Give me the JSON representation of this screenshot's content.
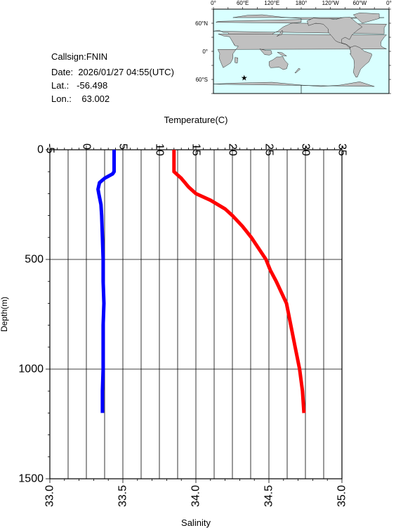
{
  "station": {
    "callsign_label": "Callsign:",
    "callsign": "FNIN",
    "date_label": "Date:",
    "date": "2026/01/27 04:55(UTC)",
    "lat_label": "Lat.:",
    "lat": "-56.498",
    "lon_label": "Lon.:",
    "lon": "63.002"
  },
  "map": {
    "lon_labels": [
      "0°",
      "60°E",
      "120°E",
      "180°",
      "120°W",
      "60°W",
      "0°"
    ],
    "lat_labels": [
      "60°N",
      "0°",
      "60°S"
    ],
    "ocean_color": "#d9ffff",
    "land_color": "#c0c0c0",
    "marker_color": "#ff0000",
    "marker_lat": -56.498,
    "marker_lon": 63.002
  },
  "chart_data": {
    "type": "line",
    "top_axis_label": "Temperature(C)",
    "bottom_axis_label": "Salinity",
    "ylabel": "Depth(m)",
    "temperature_ticks": [
      "-5",
      "0",
      "5",
      "10",
      "15",
      "20",
      "25",
      "30",
      "35"
    ],
    "salinity_ticks": [
      "33.0",
      "33.5",
      "34.0",
      "34.5",
      "35.0"
    ],
    "depth_ticks": [
      "0",
      "500",
      "1000",
      "1500"
    ],
    "temperature_range": [
      -5,
      35
    ],
    "salinity_range": [
      33.0,
      35.0
    ],
    "depth_range": [
      0,
      1500
    ],
    "depth_inverted": true,
    "grid": true,
    "series": [
      {
        "color": "#0000ff",
        "axis": "temperature",
        "depth": [
          0,
          100,
          110,
          130,
          150,
          180,
          200,
          250,
          300,
          400,
          500,
          600,
          700,
          800,
          900,
          1000,
          1100,
          1200
        ],
        "values": [
          3.8,
          3.8,
          3.6,
          2.5,
          1.8,
          1.6,
          1.7,
          2.0,
          2.1,
          2.2,
          2.3,
          2.3,
          2.4,
          2.3,
          2.3,
          2.3,
          2.2,
          2.2
        ]
      },
      {
        "color": "#ff0000",
        "axis": "salinity",
        "depth": [
          0,
          100,
          130,
          170,
          200,
          230,
          270,
          300,
          350,
          400,
          450,
          500,
          550,
          600,
          700,
          800,
          900,
          1000,
          1100,
          1200
        ],
        "values": [
          33.85,
          33.85,
          33.9,
          33.95,
          34.0,
          34.1,
          34.2,
          34.25,
          34.32,
          34.38,
          34.43,
          34.48,
          34.51,
          34.55,
          34.62,
          34.65,
          34.68,
          34.71,
          34.73,
          34.74
        ]
      }
    ]
  }
}
